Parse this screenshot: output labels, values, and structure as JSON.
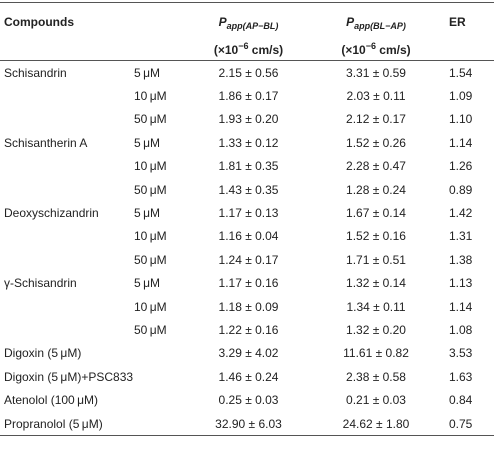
{
  "table": {
    "header": {
      "compound": "Compounds",
      "papp_ab": {
        "symbol": "P",
        "subscript": "app(AP−BL)",
        "unit_start": "(×10",
        "exponent": "−6",
        "unit_end": " cm/s)"
      },
      "papp_ba": {
        "symbol": "P",
        "subscript": "app(BL−AP)",
        "unit_start": "(×10",
        "exponent": "−6",
        "unit_end": " cm/s)"
      },
      "er": "ER"
    },
    "rows": [
      [
        "Schisandrin",
        "5 μM",
        "2.15 ± 0.56",
        "3.31 ± 0.59",
        "1.54"
      ],
      [
        null,
        "10 μM",
        "1.86 ± 0.17",
        "2.03 ± 0.11",
        "1.09"
      ],
      [
        null,
        "50 μM",
        "1.93 ± 0.20",
        "2.12 ± 0.17",
        "1.10"
      ],
      [
        "Schisantherin A",
        "5 μM",
        "1.33 ± 0.12",
        "1.52 ± 0.26",
        "1.14"
      ],
      [
        null,
        "10 μM",
        "1.81 ± 0.35",
        "2.28 ± 0.47",
        "1.26"
      ],
      [
        null,
        "50 μM",
        "1.43 ± 0.35",
        "1.28 ± 0.24",
        "0.89"
      ],
      [
        "Deoxyschizandrin",
        "5 μM",
        "1.17 ± 0.13",
        "1.67 ± 0.14",
        "1.42"
      ],
      [
        null,
        "10 μM",
        "1.16 ± 0.04",
        "1.52 ± 0.16",
        "1.31"
      ],
      [
        null,
        "50 μM",
        "1.24 ± 0.17",
        "1.71 ± 0.51",
        "1.38"
      ],
      [
        "γ-Schisandrin",
        "5 μM",
        "1.17 ± 0.16",
        "1.32 ± 0.14",
        "1.13"
      ],
      [
        null,
        "10 μM",
        "1.18 ± 0.09",
        "1.34 ± 0.11",
        "1.14"
      ],
      [
        null,
        "50 μM",
        "1.22 ± 0.16",
        "1.32 ± 0.20",
        "1.08"
      ],
      [
        "Digoxin (5 μM)",
        null,
        "3.29 ± 4.02",
        "11.61 ± 0.82",
        "3.53"
      ],
      [
        "Digoxin (5 μM)+PSC833",
        null,
        "1.46 ± 0.24",
        "2.38 ± 0.58",
        "1.63"
      ],
      [
        "Atenolol (100 μM)",
        null,
        "0.25 ± 0.03",
        "0.21 ± 0.03",
        "0.84"
      ],
      [
        "Propranolol (5 μM)",
        null,
        "32.90 ± 6.03",
        "24.62 ± 1.80",
        "0.75"
      ]
    ]
  }
}
